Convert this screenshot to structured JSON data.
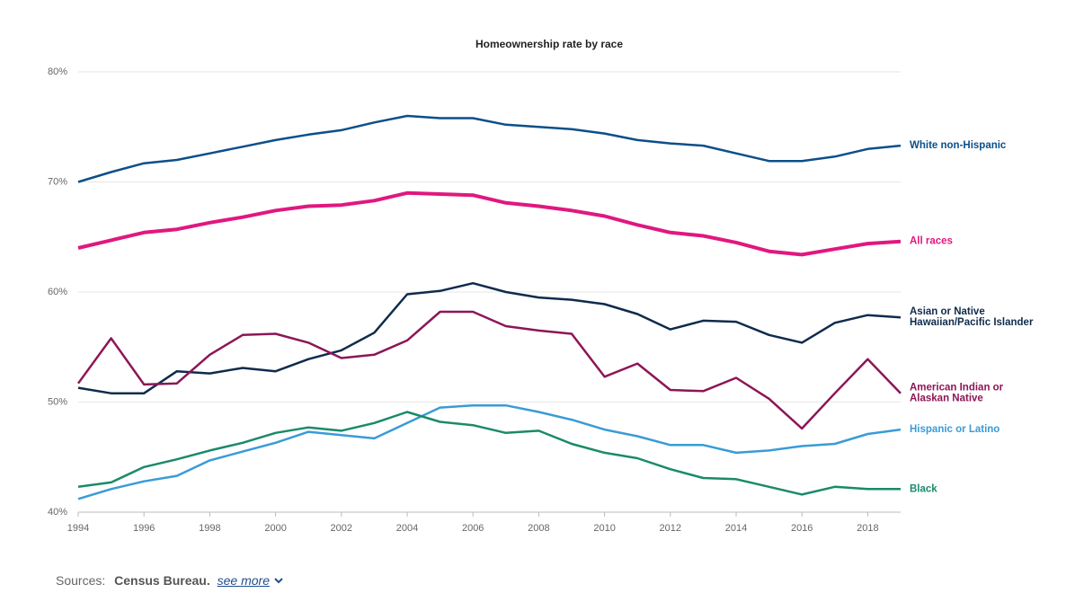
{
  "chart_data": {
    "type": "line",
    "title": "Homeownership rate by race",
    "x": [
      1994,
      1995,
      1996,
      1997,
      1998,
      1999,
      2000,
      2001,
      2002,
      2003,
      2004,
      2005,
      2006,
      2007,
      2008,
      2009,
      2010,
      2011,
      2012,
      2013,
      2014,
      2015,
      2016,
      2017,
      2018,
      2019
    ],
    "xlim": [
      1994,
      2019
    ],
    "xticks": [
      1994,
      1996,
      1998,
      2000,
      2002,
      2004,
      2006,
      2008,
      2010,
      2012,
      2014,
      2016,
      2018
    ],
    "ylim": [
      40,
      80
    ],
    "yticks": [
      {
        "value": 40,
        "label": "40%"
      },
      {
        "value": 50,
        "label": "50%"
      },
      {
        "value": 60,
        "label": "60%"
      },
      {
        "value": 70,
        "label": "70%"
      },
      {
        "value": 80,
        "label": "80%"
      }
    ],
    "grid": true,
    "series": [
      {
        "name": "White non-Hispanic",
        "color": "#0b4f8a",
        "values": [
          70.0,
          70.9,
          71.7,
          72.0,
          72.6,
          73.2,
          73.8,
          74.3,
          74.7,
          75.4,
          76.0,
          75.8,
          75.8,
          75.2,
          75.0,
          74.8,
          74.4,
          73.8,
          73.5,
          73.3,
          72.6,
          71.9,
          71.9,
          72.3,
          73.0,
          73.3
        ]
      },
      {
        "name": "All races",
        "color": "#e0187f",
        "emphasis": true,
        "values": [
          64.0,
          64.7,
          65.4,
          65.7,
          66.3,
          66.8,
          67.4,
          67.8,
          67.9,
          68.3,
          69.0,
          68.9,
          68.8,
          68.1,
          67.8,
          67.4,
          66.9,
          66.1,
          65.4,
          65.1,
          64.5,
          63.7,
          63.4,
          63.9,
          64.4,
          64.6
        ]
      },
      {
        "name": "Asian or Native Hawaiian/Pacific Islander",
        "color": "#0f2b4c",
        "values": [
          51.3,
          50.8,
          50.8,
          52.8,
          52.6,
          53.1,
          52.8,
          53.9,
          54.7,
          56.3,
          59.8,
          60.1,
          60.8,
          60.0,
          59.5,
          59.3,
          58.9,
          58.0,
          56.6,
          57.4,
          57.3,
          56.1,
          55.4,
          57.2,
          57.9,
          57.7
        ]
      },
      {
        "name": "American Indian or Alaskan Native",
        "color": "#8c1657",
        "values": [
          51.7,
          55.8,
          51.6,
          51.7,
          54.3,
          56.1,
          56.2,
          55.4,
          54.0,
          54.3,
          55.6,
          58.2,
          58.2,
          56.9,
          56.5,
          56.2,
          52.3,
          53.5,
          51.1,
          51.0,
          52.2,
          50.3,
          47.6,
          50.8,
          53.9,
          50.8
        ]
      },
      {
        "name": "Hispanic or Latino",
        "color": "#3a9bd6",
        "values": [
          41.2,
          42.1,
          42.8,
          43.3,
          44.7,
          45.5,
          46.3,
          47.3,
          47.0,
          46.7,
          48.1,
          49.5,
          49.7,
          49.7,
          49.1,
          48.4,
          47.5,
          46.9,
          46.1,
          46.1,
          45.4,
          45.6,
          46.0,
          46.2,
          47.1,
          47.5
        ]
      },
      {
        "name": "Black",
        "color": "#1a8a6a",
        "values": [
          42.3,
          42.7,
          44.1,
          44.8,
          45.6,
          46.3,
          47.2,
          47.7,
          47.4,
          48.1,
          49.1,
          48.2,
          47.9,
          47.2,
          47.4,
          46.2,
          45.4,
          44.9,
          43.9,
          43.1,
          43.0,
          42.3,
          41.6,
          42.3,
          42.1,
          42.1
        ]
      }
    ]
  },
  "footer": {
    "sources_label": "Sources:",
    "source": "Census Bureau.",
    "see_more": "see more"
  }
}
